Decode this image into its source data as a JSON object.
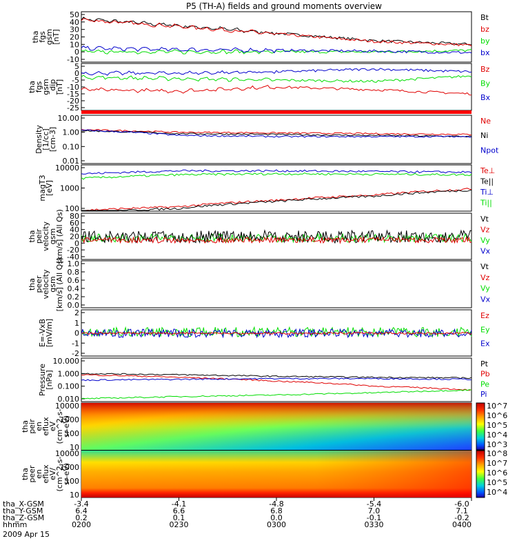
{
  "title": "P5 (TH-A) fields and ground moments overview",
  "colors": {
    "black": "#000000",
    "red": "#e00000",
    "green": "#00dd00",
    "blue": "#0000cc"
  },
  "x_axis": {
    "rows": [
      {
        "label": "tha_X-GSM",
        "values": [
          "-3.4",
          "-4.1",
          "-4.8",
          "-5.4",
          "-6.0"
        ]
      },
      {
        "label": "tha_Y-GSM",
        "values": [
          "6.4",
          "6.6",
          "6.8",
          "7.0",
          "7.1"
        ]
      },
      {
        "label": "tha_Z-GSM",
        "values": [
          "0.2",
          "0.1",
          "0.0",
          "-0.1",
          "-0.2"
        ]
      },
      {
        "label": "hhmm",
        "values": [
          "0200",
          "0230",
          "0300",
          "0330",
          "0400"
        ]
      }
    ],
    "date": "2009 Apr 15"
  },
  "panels": [
    {
      "id": "fgs-btot",
      "ylabel": [
        "tha",
        "fgs",
        "gsm",
        "[nT]"
      ],
      "ticks": [
        "50",
        "40",
        "30",
        "20",
        "10",
        "0",
        "-10"
      ],
      "legend": [
        {
          "text": "Bt",
          "color": "#000000"
        },
        {
          "text": "bz",
          "color": "#e00000"
        },
        {
          "text": "by",
          "color": "#00dd00"
        },
        {
          "text": "bx",
          "color": "#0000cc"
        }
      ]
    },
    {
      "id": "fgs-comp",
      "ylabel": [
        "tha",
        "fgs",
        "gsm",
        "_dip",
        "[nT]"
      ],
      "ticks": [
        "5",
        "0",
        "-5",
        "-10",
        "-15",
        "-20",
        "-25"
      ],
      "legend": [
        {
          "text": "Bz",
          "color": "#e00000"
        },
        {
          "text": "By",
          "color": "#00dd00"
        },
        {
          "text": "Bx",
          "color": "#0000cc"
        }
      ]
    },
    {
      "id": "density",
      "ylabel": [
        "Density",
        "[1/cc]",
        "[cm-3]"
      ],
      "ticks": [
        "10.00",
        "1.00",
        "0.10",
        "0.01"
      ],
      "legend": [
        {
          "text": "Ne",
          "color": "#e00000"
        },
        {
          "text": "Ni",
          "color": "#000000"
        },
        {
          "text": "Npot",
          "color": "#0000cc"
        }
      ]
    },
    {
      "id": "temperature",
      "ylabel": [
        "magT3",
        "[eV]"
      ],
      "ticks": [
        "10000",
        "1000",
        "100"
      ],
      "legend": [
        {
          "text": "Te⊥",
          "color": "#e00000"
        },
        {
          "text": "Te||",
          "color": "#000000"
        },
        {
          "text": "Ti⊥",
          "color": "#0000cc"
        },
        {
          "text": "Ti||",
          "color": "#00dd00"
        }
      ]
    },
    {
      "id": "peir-velocity",
      "ylabel": [
        "tha",
        "peir",
        "velocity",
        "gsm",
        "[km/s] (All Qs)"
      ],
      "ticks": [
        "80",
        "60",
        "40",
        "20",
        "0",
        "-20",
        "-40"
      ],
      "legend": [
        {
          "text": "Vt",
          "color": "#000000"
        },
        {
          "text": "Vz",
          "color": "#e00000"
        },
        {
          "text": "Vy",
          "color": "#00dd00"
        },
        {
          "text": "Vx",
          "color": "#0000cc"
        }
      ]
    },
    {
      "id": "peer-velocity",
      "ylabel": [
        "tha",
        "peer",
        "velocity",
        "gsm",
        "[km/s] (All Qs)"
      ],
      "ticks": [
        "1.0",
        "0.8",
        "0.6",
        "0.4",
        "0.2",
        "0.0"
      ],
      "legend": [
        {
          "text": "Vt",
          "color": "#000000"
        },
        {
          "text": "Vz",
          "color": "#e00000"
        },
        {
          "text": "Vy",
          "color": "#00dd00"
        },
        {
          "text": "Vx",
          "color": "#0000cc"
        }
      ]
    },
    {
      "id": "efield",
      "ylabel": [
        "E=-VxB",
        "[mV/m]"
      ],
      "ticks": [
        "2",
        "1",
        "0",
        "-1",
        "-2"
      ],
      "legend": [
        {
          "text": "Ez",
          "color": "#e00000"
        },
        {
          "text": "Ey",
          "color": "#00dd00"
        },
        {
          "text": "Ex",
          "color": "#0000cc"
        }
      ]
    },
    {
      "id": "pressure",
      "ylabel": [
        "Pressure",
        "[nPa]"
      ],
      "ticks": [
        "10.000",
        "1.000",
        "0.100",
        "0.010"
      ],
      "legend": [
        {
          "text": "Pt",
          "color": "#000000"
        },
        {
          "text": "Pb",
          "color": "#e00000"
        },
        {
          "text": "Pe",
          "color": "#00dd00"
        },
        {
          "text": "Pi",
          "color": "#0000cc"
        }
      ]
    },
    {
      "id": "peir-spec",
      "ylabel": [
        "tha",
        "peir",
        "en",
        "eflux",
        "eV",
        "(cm^2-s-",
        "sr-eV)"
      ],
      "ticks": [
        "10000",
        "1000",
        "100",
        "10"
      ],
      "colorbar": [
        "10^7",
        "10^6",
        "10^5",
        "10^4",
        "10^3"
      ]
    },
    {
      "id": "peer-spec",
      "ylabel": [
        "tha",
        "peer",
        "en",
        "eflux",
        "eV/",
        "(cm^2-s-",
        "sr-eV)"
      ],
      "ticks": [
        "10000",
        "1000",
        "100",
        "10"
      ],
      "colorbar": [
        "10^8",
        "10^7",
        "10^6",
        "10^5",
        "10^4"
      ]
    }
  ],
  "chart_data": {
    "type": "line",
    "title": "P5 (TH-A) fields and ground moments overview",
    "x": [
      "0200",
      "0230",
      "0300",
      "0330",
      "0400"
    ],
    "series": [
      {
        "name": "Bt",
        "panel": "fgs-btot",
        "values": [
          44,
          35,
          25,
          15,
          10
        ]
      },
      {
        "name": "bz",
        "panel": "fgs-btot",
        "values": [
          43,
          34,
          24,
          14,
          9
        ]
      },
      {
        "name": "by",
        "panel": "fgs-btot",
        "values": [
          0,
          0,
          0,
          0,
          2
        ]
      },
      {
        "name": "bx",
        "panel": "fgs-btot",
        "values": [
          5,
          3,
          2,
          1,
          -1
        ]
      },
      {
        "name": "Bz",
        "panel": "fgs-comp",
        "values": [
          -12,
          -13,
          -10,
          -12,
          -15
        ]
      },
      {
        "name": "By",
        "panel": "fgs-comp",
        "values": [
          -3,
          -4,
          -5,
          -6,
          -2
        ]
      },
      {
        "name": "Bx",
        "panel": "fgs-comp",
        "values": [
          0,
          0,
          1,
          3,
          1
        ]
      },
      {
        "name": "Ne",
        "panel": "density",
        "values": [
          1.5,
          1.0,
          0.9,
          0.8,
          0.7
        ]
      },
      {
        "name": "Ni",
        "panel": "density",
        "values": [
          1.3,
          0.8,
          0.7,
          0.6,
          0.5
        ]
      },
      {
        "name": "Npot",
        "panel": "density",
        "values": [
          1.4,
          0.6,
          0.5,
          0.5,
          0.5
        ]
      },
      {
        "name": "Te⊥",
        "panel": "temperature",
        "values": [
          80,
          120,
          250,
          450,
          900
        ]
      },
      {
        "name": "Te||",
        "panel": "temperature",
        "values": [
          60,
          100,
          220,
          400,
          800
        ]
      },
      {
        "name": "Ti⊥",
        "panel": "temperature",
        "values": [
          5000,
          7000,
          7000,
          6500,
          6000
        ]
      },
      {
        "name": "Ti||",
        "panel": "temperature",
        "values": [
          3000,
          4500,
          5000,
          4800,
          4500
        ]
      },
      {
        "name": "Pt",
        "panel": "pressure",
        "values": [
          1.0,
          0.8,
          0.6,
          0.5,
          0.45
        ]
      },
      {
        "name": "Pb",
        "panel": "pressure",
        "values": [
          0.8,
          0.5,
          0.25,
          0.1,
          0.05
        ]
      },
      {
        "name": "Pe",
        "panel": "pressure",
        "values": [
          0.01,
          0.015,
          0.02,
          0.03,
          0.05
        ]
      },
      {
        "name": "Pi",
        "panel": "pressure",
        "values": [
          0.3,
          0.35,
          0.4,
          0.4,
          0.35
        ]
      }
    ]
  }
}
